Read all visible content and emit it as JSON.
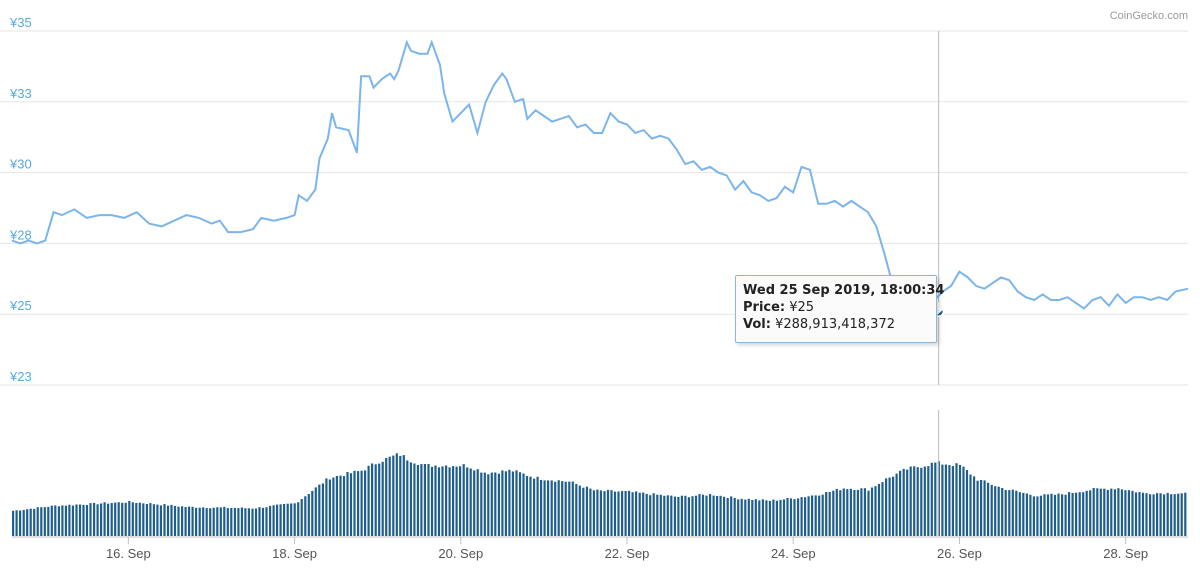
{
  "chart_data": [
    {
      "type": "line",
      "title": "",
      "xlabel": "",
      "ylabel": "",
      "y_tick_labels": [
        "¥35",
        "¥33",
        "¥30",
        "¥28",
        "¥25",
        "¥23"
      ],
      "y_ticks": [
        35,
        32.5,
        30,
        27.5,
        25,
        22.5
      ],
      "ylim": [
        22.5,
        35
      ],
      "x_tick_labels": [
        "16. Sep",
        "18. Sep",
        "20. Sep",
        "22. Sep",
        "24. Sep",
        "26. Sep",
        "28. Sep"
      ],
      "x_ticks": [
        16,
        18,
        20,
        22,
        24,
        26,
        28
      ],
      "xlim": [
        14.6,
        28.75
      ],
      "grid": true,
      "series": [
        {
          "color": "#7cb5ec",
          "points": [
            [
              14.6,
              27.6
            ],
            [
              14.7,
              27.5
            ],
            [
              14.8,
              27.6
            ],
            [
              14.9,
              27.5
            ],
            [
              15.0,
              27.6
            ],
            [
              15.1,
              28.6
            ],
            [
              15.2,
              28.5
            ],
            [
              15.35,
              28.7
            ],
            [
              15.5,
              28.4
            ],
            [
              15.65,
              28.5
            ],
            [
              15.8,
              28.5
            ],
            [
              15.95,
              28.4
            ],
            [
              16.1,
              28.6
            ],
            [
              16.25,
              28.2
            ],
            [
              16.4,
              28.1
            ],
            [
              16.55,
              28.3
            ],
            [
              16.7,
              28.5
            ],
            [
              16.85,
              28.4
            ],
            [
              17.0,
              28.2
            ],
            [
              17.1,
              28.3
            ],
            [
              17.2,
              27.9
            ],
            [
              17.35,
              27.9
            ],
            [
              17.5,
              28.0
            ],
            [
              17.6,
              28.4
            ],
            [
              17.75,
              28.3
            ],
            [
              17.9,
              28.4
            ],
            [
              18.0,
              28.5
            ],
            [
              18.05,
              29.2
            ],
            [
              18.15,
              29.0
            ],
            [
              18.25,
              29.4
            ],
            [
              18.3,
              30.5
            ],
            [
              18.4,
              31.2
            ],
            [
              18.45,
              32.1
            ],
            [
              18.5,
              31.6
            ],
            [
              18.65,
              31.5
            ],
            [
              18.75,
              30.7
            ],
            [
              18.8,
              33.4
            ],
            [
              18.9,
              33.4
            ],
            [
              18.95,
              33.0
            ],
            [
              19.05,
              33.3
            ],
            [
              19.15,
              33.5
            ],
            [
              19.2,
              33.3
            ],
            [
              19.25,
              33.6
            ],
            [
              19.35,
              34.6
            ],
            [
              19.4,
              34.3
            ],
            [
              19.5,
              34.2
            ],
            [
              19.6,
              34.2
            ],
            [
              19.65,
              34.6
            ],
            [
              19.75,
              33.8
            ],
            [
              19.8,
              32.8
            ],
            [
              19.9,
              31.8
            ],
            [
              20.0,
              32.1
            ],
            [
              20.1,
              32.4
            ],
            [
              20.15,
              31.9
            ],
            [
              20.2,
              31.4
            ],
            [
              20.3,
              32.5
            ],
            [
              20.4,
              33.1
            ],
            [
              20.5,
              33.5
            ],
            [
              20.55,
              33.3
            ],
            [
              20.65,
              32.5
            ],
            [
              20.75,
              32.6
            ],
            [
              20.8,
              31.9
            ],
            [
              20.9,
              32.2
            ],
            [
              21.0,
              32.0
            ],
            [
              21.1,
              31.8
            ],
            [
              21.2,
              31.9
            ],
            [
              21.3,
              32.0
            ],
            [
              21.4,
              31.6
            ],
            [
              21.5,
              31.7
            ],
            [
              21.6,
              31.4
            ],
            [
              21.7,
              31.4
            ],
            [
              21.8,
              32.1
            ],
            [
              21.9,
              31.8
            ],
            [
              22.0,
              31.7
            ],
            [
              22.1,
              31.4
            ],
            [
              22.2,
              31.5
            ],
            [
              22.3,
              31.2
            ],
            [
              22.4,
              31.3
            ],
            [
              22.5,
              31.2
            ],
            [
              22.6,
              30.8
            ],
            [
              22.7,
              30.3
            ],
            [
              22.8,
              30.4
            ],
            [
              22.9,
              30.1
            ],
            [
              23.0,
              30.2
            ],
            [
              23.1,
              30.0
            ],
            [
              23.2,
              29.9
            ],
            [
              23.3,
              29.4
            ],
            [
              23.4,
              29.7
            ],
            [
              23.5,
              29.3
            ],
            [
              23.6,
              29.2
            ],
            [
              23.7,
              29.0
            ],
            [
              23.8,
              29.1
            ],
            [
              23.9,
              29.5
            ],
            [
              24.0,
              29.3
            ],
            [
              24.1,
              30.2
            ],
            [
              24.2,
              30.1
            ],
            [
              24.3,
              28.9
            ],
            [
              24.4,
              28.9
            ],
            [
              24.5,
              29.0
            ],
            [
              24.6,
              28.8
            ],
            [
              24.7,
              29.0
            ],
            [
              24.8,
              28.8
            ],
            [
              24.9,
              28.6
            ],
            [
              25.0,
              28.1
            ],
            [
              25.1,
              27.1
            ],
            [
              25.2,
              26.0
            ],
            [
              25.3,
              25.4
            ],
            [
              25.4,
              25.8
            ],
            [
              25.5,
              25.4
            ],
            [
              25.55,
              25.1
            ],
            [
              25.6,
              25.1
            ],
            [
              25.7,
              25.5
            ],
            [
              25.8,
              25.8
            ],
            [
              25.9,
              26.0
            ],
            [
              26.0,
              26.5
            ],
            [
              26.1,
              26.3
            ],
            [
              26.2,
              26.0
            ],
            [
              26.3,
              25.9
            ],
            [
              26.4,
              26.1
            ],
            [
              26.5,
              26.3
            ],
            [
              26.6,
              26.2
            ],
            [
              26.7,
              25.8
            ],
            [
              26.8,
              25.6
            ],
            [
              26.9,
              25.5
            ],
            [
              27.0,
              25.7
            ],
            [
              27.1,
              25.5
            ],
            [
              27.2,
              25.5
            ],
            [
              27.3,
              25.6
            ],
            [
              27.4,
              25.4
            ],
            [
              27.5,
              25.2
            ],
            [
              27.6,
              25.5
            ],
            [
              27.7,
              25.6
            ],
            [
              27.8,
              25.3
            ],
            [
              27.9,
              25.7
            ],
            [
              28.0,
              25.4
            ],
            [
              28.1,
              25.6
            ],
            [
              28.2,
              25.6
            ],
            [
              28.3,
              25.5
            ],
            [
              28.4,
              25.6
            ],
            [
              28.5,
              25.5
            ],
            [
              28.6,
              25.8
            ],
            [
              28.75,
              25.9
            ]
          ]
        }
      ],
      "highlight": {
        "x": 25.75,
        "y": 25.1
      }
    },
    {
      "type": "bar",
      "title": "",
      "xlabel": "",
      "ylabel": "",
      "color": "#1f5f8d",
      "volume_profile_note": "",
      "profile": [
        [
          14.6,
          0.2
        ],
        [
          15.1,
          0.24
        ],
        [
          16.0,
          0.27
        ],
        [
          16.2,
          0.26
        ],
        [
          16.7,
          0.23
        ],
        [
          17.5,
          0.22
        ],
        [
          18.0,
          0.26
        ],
        [
          18.2,
          0.36
        ],
        [
          18.4,
          0.46
        ],
        [
          18.8,
          0.52
        ],
        [
          19.0,
          0.59
        ],
        [
          19.25,
          0.65
        ],
        [
          19.35,
          0.61
        ],
        [
          19.55,
          0.56
        ],
        [
          19.8,
          0.56
        ],
        [
          20.05,
          0.56
        ],
        [
          20.3,
          0.5
        ],
        [
          20.6,
          0.52
        ],
        [
          20.9,
          0.46
        ],
        [
          21.3,
          0.43
        ],
        [
          21.6,
          0.36
        ],
        [
          22.0,
          0.35
        ],
        [
          22.3,
          0.33
        ],
        [
          22.6,
          0.31
        ],
        [
          23.0,
          0.33
        ],
        [
          23.3,
          0.3
        ],
        [
          23.7,
          0.28
        ],
        [
          24.0,
          0.3
        ],
        [
          24.3,
          0.33
        ],
        [
          24.6,
          0.38
        ],
        [
          24.9,
          0.37
        ],
        [
          25.1,
          0.45
        ],
        [
          25.35,
          0.53
        ],
        [
          25.7,
          0.58
        ],
        [
          26.0,
          0.56
        ],
        [
          26.2,
          0.45
        ],
        [
          26.5,
          0.38
        ],
        [
          26.9,
          0.32
        ],
        [
          27.2,
          0.33
        ],
        [
          27.6,
          0.37
        ],
        [
          27.9,
          0.38
        ],
        [
          28.2,
          0.34
        ],
        [
          28.75,
          0.34
        ]
      ]
    }
  ],
  "tooltip": {
    "date": "Wed 25 Sep 2019, 18:00:34",
    "price_label": "Price:",
    "price_value": "¥25",
    "vol_label": "Vol:",
    "vol_value": "¥288,913,418,372"
  },
  "credit": "CoinGecko.com"
}
